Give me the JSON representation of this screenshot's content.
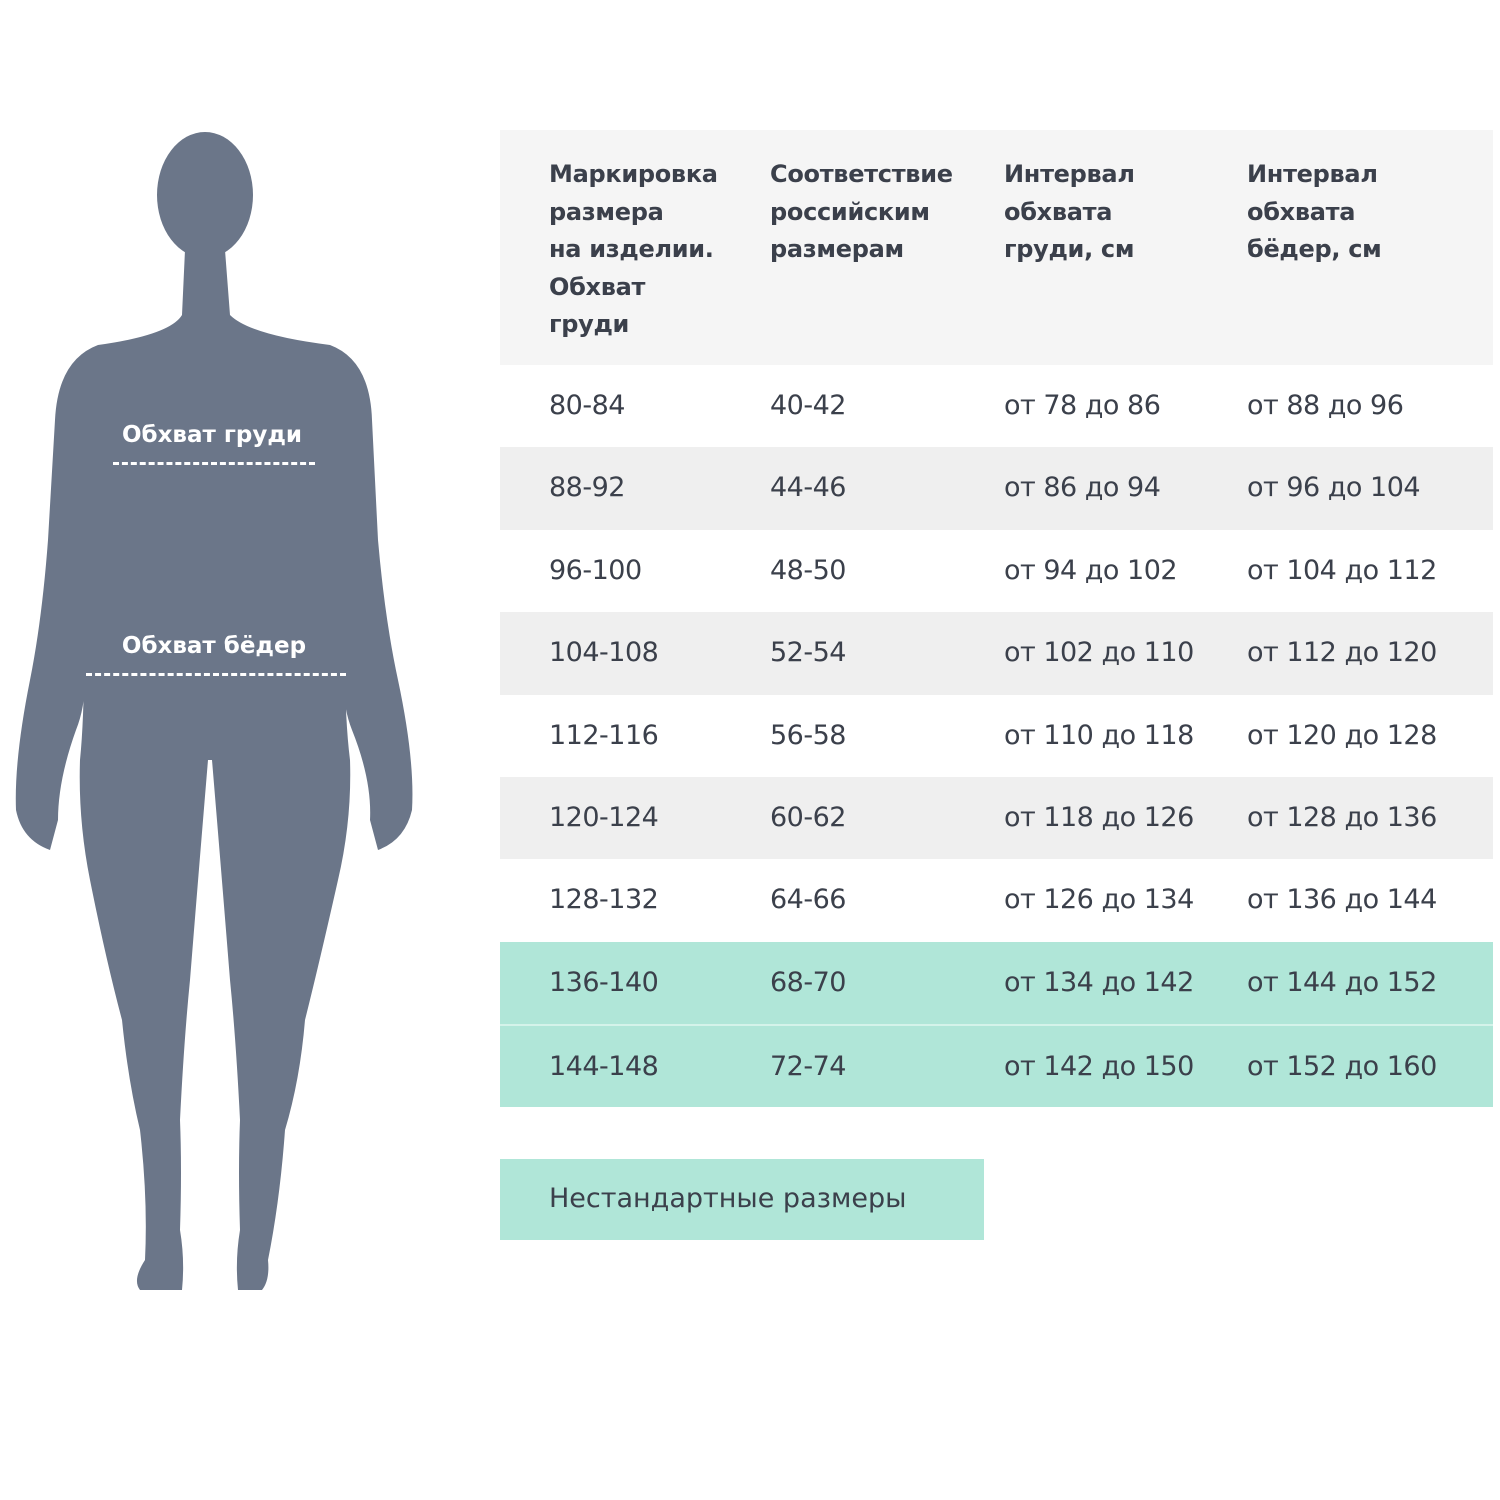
{
  "figure": {
    "chest_label": "Обхват груди",
    "hips_label": "Обхват бёдер",
    "silhouette_color": "#6b7689"
  },
  "table": {
    "headers": [
      "Маркировка\nразмера\nна изделии.\nОбхват\nгруди",
      "Соответствие\nроссийским\nразмерам",
      "Интервал\nобхвата\nгруди, см",
      "Интервал\nобхвата\nбёдер, см"
    ],
    "rows": [
      [
        "80-84",
        "40-42",
        "от 78 до 86",
        "от 88 до 96"
      ],
      [
        "88-92",
        "44-46",
        "от 86 до 94",
        "от 96 до 104"
      ],
      [
        "96-100",
        "48-50",
        "от 94 до 102",
        "от 104 до 112"
      ],
      [
        "104-108",
        "52-54",
        "от 102 до 110",
        "от 112 до 120"
      ],
      [
        "112-116",
        "56-58",
        "от 110 до 118",
        "от 120 до 128"
      ],
      [
        "120-124",
        "60-62",
        "от 118 до 126",
        "от 128 до 136"
      ],
      [
        "128-132",
        "64-66",
        "от 126 до 134",
        "от 136 до 144"
      ],
      [
        "136-140",
        "68-70",
        "от 134 до 142",
        "от 144 до 152"
      ],
      [
        "144-148",
        "72-74",
        "от 142 до 150",
        "от 152 до 160"
      ]
    ],
    "highlight_color": "#b0e6d8"
  },
  "note": "Нестандартные размеры"
}
